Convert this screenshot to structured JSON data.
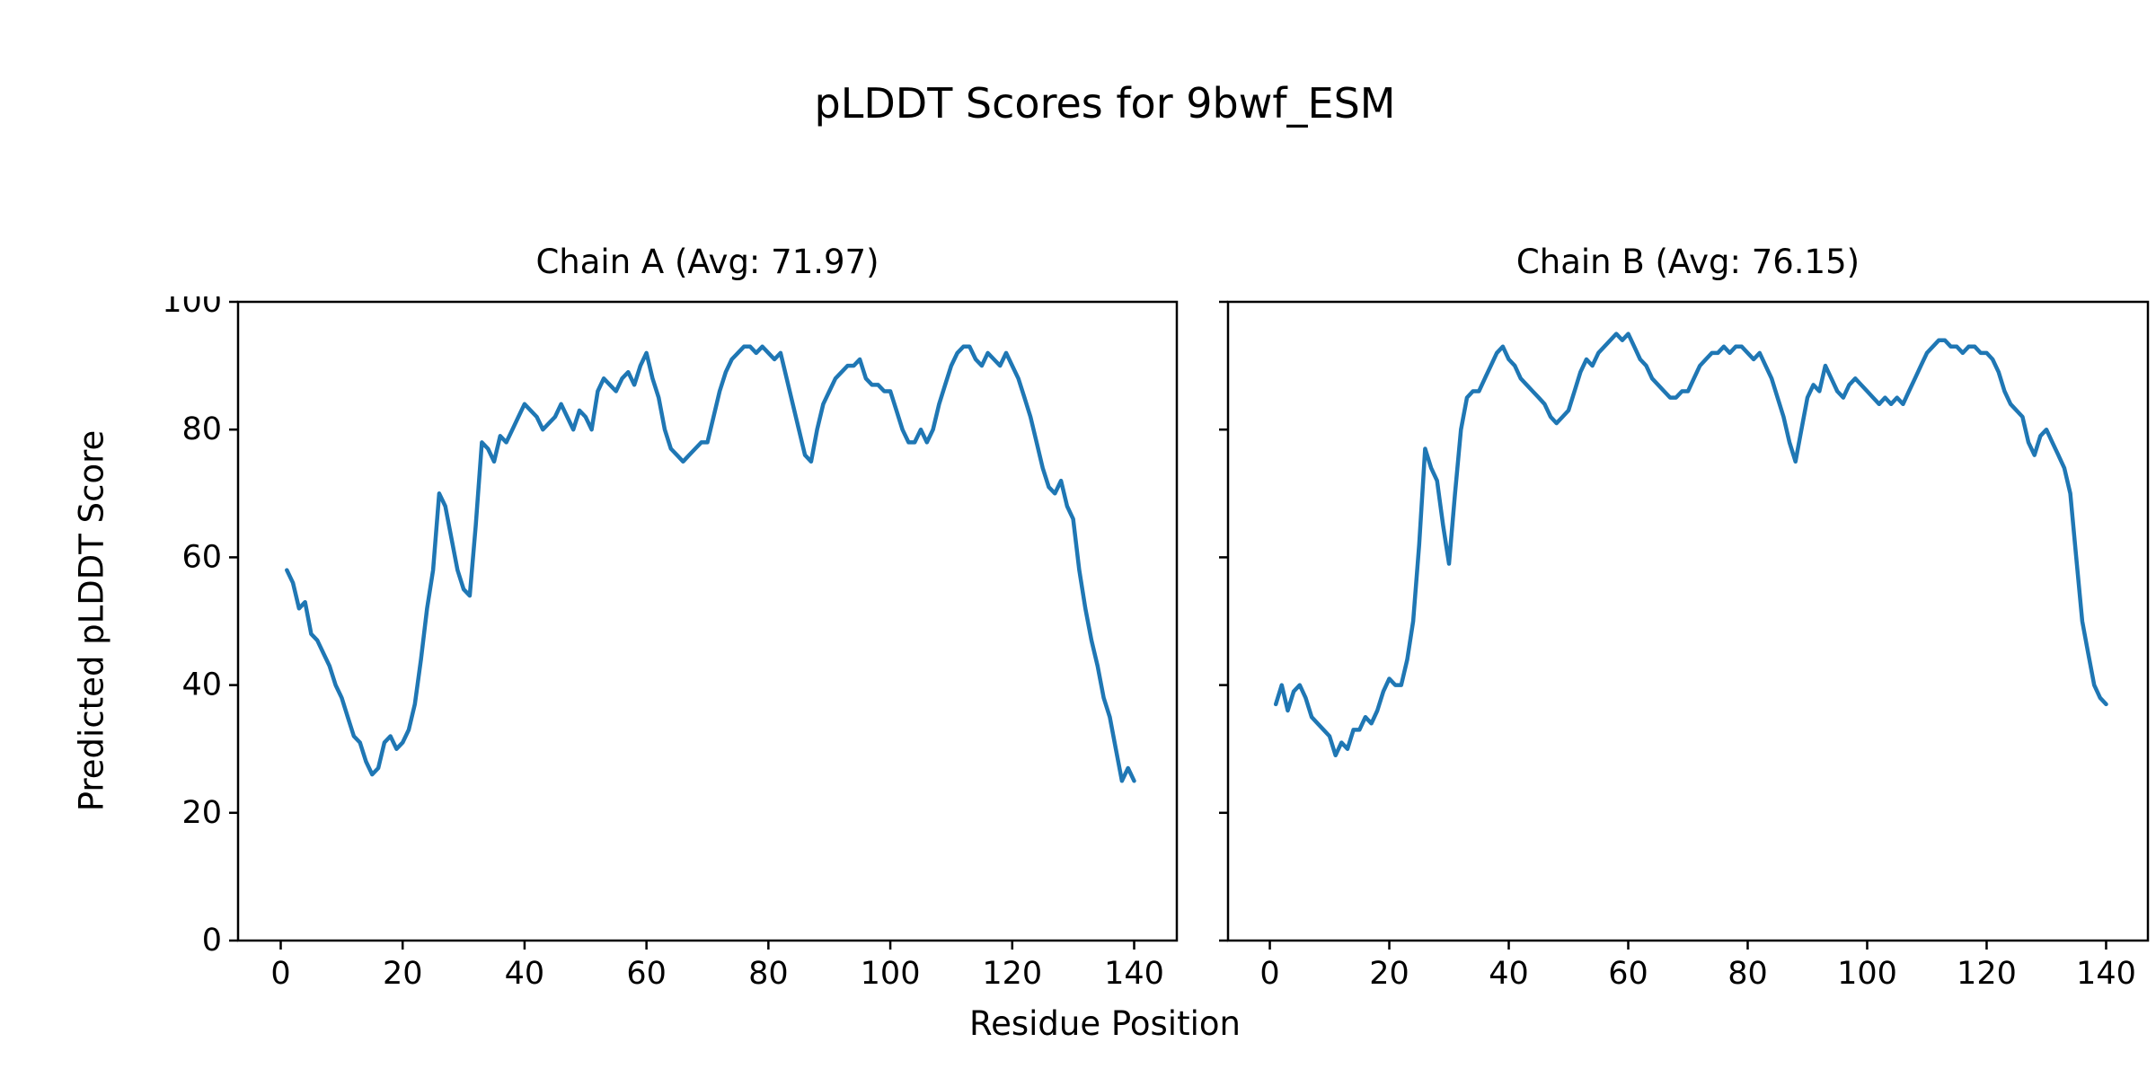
{
  "figure": {
    "title": "pLDDT Scores for 9bwf_ESM",
    "xlabel": "Residue Position",
    "ylabel": "Predicted pLDDT Score"
  },
  "chart_data": {
    "type": "line",
    "title": "pLDDT Scores for 9bwf_ESM",
    "xlabel": "Residue Position",
    "ylabel": "Predicted pLDDT Score",
    "line_color": "#1f77b4",
    "grid": false,
    "legend": "none",
    "charts": [
      {
        "label": "Chain A (Avg: 71.97)",
        "chain": "A",
        "avg": 71.97,
        "x_start": 1,
        "xlim": [
          -7,
          147
        ],
        "ylim": [
          0,
          100
        ],
        "xticks": [
          0,
          20,
          40,
          60,
          80,
          100,
          120,
          140
        ],
        "yticks": [
          0,
          20,
          40,
          60,
          80,
          100
        ],
        "show_y_tick_labels": true,
        "values": [
          58,
          56,
          52,
          53,
          48,
          47,
          45,
          43,
          40,
          38,
          35,
          32,
          31,
          28,
          26,
          27,
          31,
          32,
          30,
          31,
          33,
          37,
          44,
          52,
          58,
          70,
          68,
          63,
          58,
          55,
          54,
          65,
          78,
          77,
          75,
          79,
          78,
          80,
          82,
          84,
          83,
          82,
          80,
          81,
          82,
          84,
          82,
          80,
          83,
          82,
          80,
          86,
          88,
          87,
          86,
          88,
          89,
          87,
          90,
          92,
          88,
          85,
          80,
          77,
          76,
          75,
          76,
          77,
          78,
          78,
          82,
          86,
          89,
          91,
          92,
          93,
          93,
          92,
          93,
          92,
          91,
          92,
          88,
          84,
          80,
          76,
          75,
          80,
          84,
          86,
          88,
          89,
          90,
          90,
          91,
          88,
          87,
          87,
          86,
          86,
          83,
          80,
          78,
          78,
          80,
          78,
          80,
          84,
          87,
          90,
          92,
          93,
          93,
          91,
          90,
          92,
          91,
          90,
          92,
          90,
          88,
          85,
          82,
          78,
          74,
          71,
          70,
          72,
          68,
          66,
          58,
          52,
          47,
          43,
          38,
          35,
          30,
          25,
          27,
          25
        ]
      },
      {
        "label": "Chain B (Avg: 76.15)",
        "chain": "B",
        "avg": 76.15,
        "x_start": 1,
        "xlim": [
          -7,
          147
        ],
        "ylim": [
          0,
          100
        ],
        "xticks": [
          0,
          20,
          40,
          60,
          80,
          100,
          120,
          140
        ],
        "yticks": [
          0,
          20,
          40,
          60,
          80,
          100
        ],
        "show_y_tick_labels": false,
        "values": [
          37,
          40,
          36,
          39,
          40,
          38,
          35,
          34,
          33,
          32,
          29,
          31,
          30,
          33,
          33,
          35,
          34,
          36,
          39,
          41,
          40,
          40,
          44,
          50,
          62,
          77,
          74,
          72,
          65,
          59,
          70,
          80,
          85,
          86,
          86,
          88,
          90,
          92,
          93,
          91,
          90,
          88,
          87,
          86,
          85,
          84,
          82,
          81,
          82,
          83,
          86,
          89,
          91,
          90,
          92,
          93,
          94,
          95,
          94,
          95,
          93,
          91,
          90,
          88,
          87,
          86,
          85,
          85,
          86,
          86,
          88,
          90,
          91,
          92,
          92,
          93,
          92,
          93,
          93,
          92,
          91,
          92,
          90,
          88,
          85,
          82,
          78,
          75,
          80,
          85,
          87,
          86,
          90,
          88,
          86,
          85,
          87,
          88,
          87,
          86,
          85,
          84,
          85,
          84,
          85,
          84,
          86,
          88,
          90,
          92,
          93,
          94,
          94,
          93,
          93,
          92,
          93,
          93,
          92,
          92,
          91,
          89,
          86,
          84,
          83,
          82,
          78,
          76,
          79,
          80,
          78,
          76,
          74,
          70,
          60,
          50,
          45,
          40,
          38,
          37
        ]
      }
    ]
  }
}
